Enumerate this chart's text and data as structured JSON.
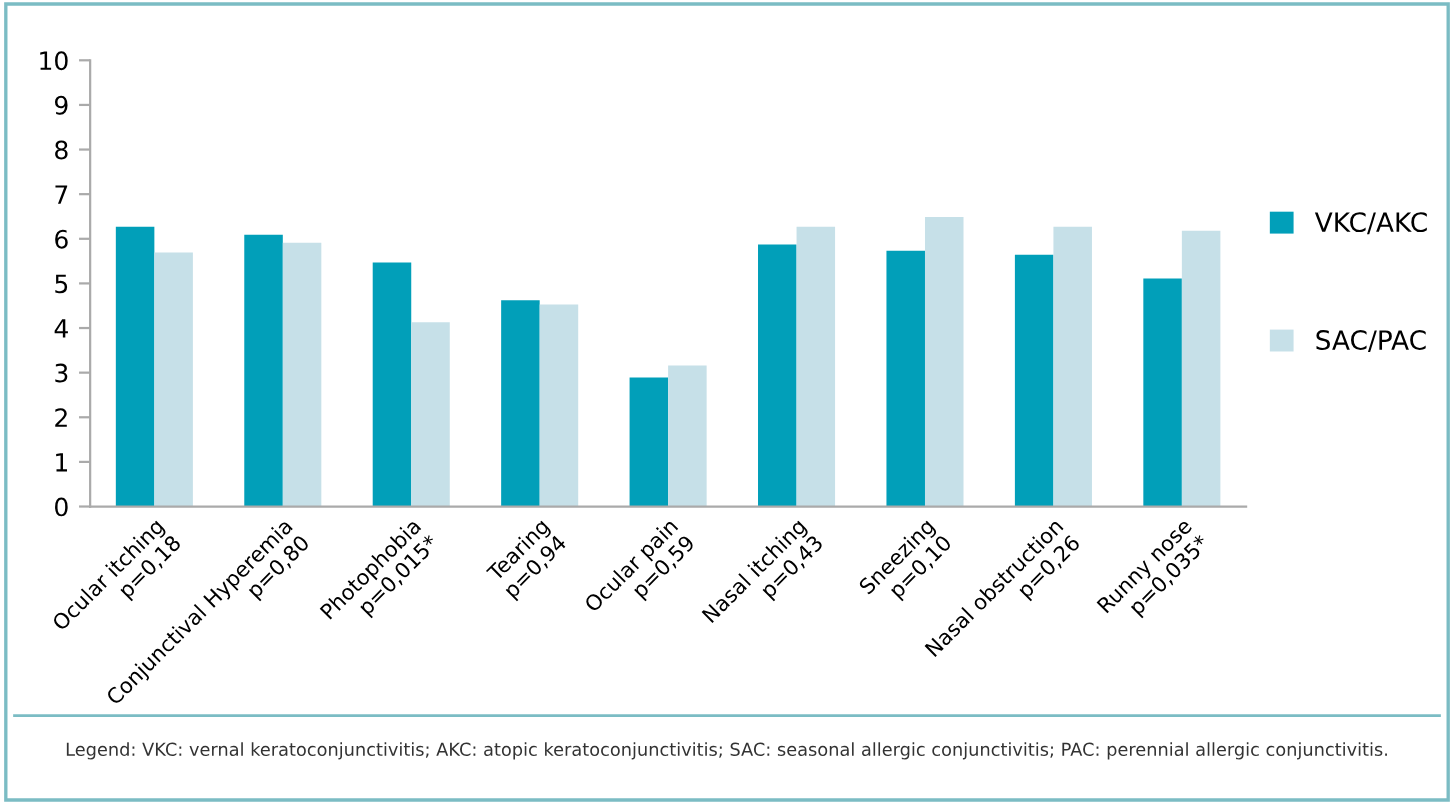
{
  "chart_data": {
    "type": "bar",
    "categories": [
      "Ocular itching\np=0,18",
      "Conjunctival Hyperemia\np=0,80",
      "Photophobia\np=0,015*",
      "Tearing\np=0,94",
      "Ocular pain\np=0,59",
      "Nasal itching\np=0,43",
      "Sneezing\np=0,10",
      "Nasal obstruction\np=0,26",
      "Runny nose\np=0,035*"
    ],
    "series": [
      {
        "name": "VKC/AKC",
        "color": "#019fb9",
        "values": [
          6.27,
          6.09,
          5.47,
          4.62,
          2.89,
          5.87,
          5.73,
          5.64,
          5.11
        ]
      },
      {
        "name": "SAC/PAC",
        "color": "#c6e0e8",
        "values": [
          5.69,
          5.91,
          4.13,
          4.53,
          3.16,
          6.27,
          6.49,
          6.27,
          6.18
        ]
      }
    ],
    "ylim": [
      0,
      10
    ],
    "yticks": [
      0,
      1,
      2,
      3,
      4,
      5,
      6,
      7,
      8,
      9,
      10
    ],
    "grid": false,
    "legend": "right",
    "annotations": [
      "Legend: VKC: vernal keratoconjunctivitis; AKC: atopic keratoconjunctivitis; SAC: seasonal allergic conjunctivitis; PAC: perennial allergic conjunctivitis."
    ]
  }
}
